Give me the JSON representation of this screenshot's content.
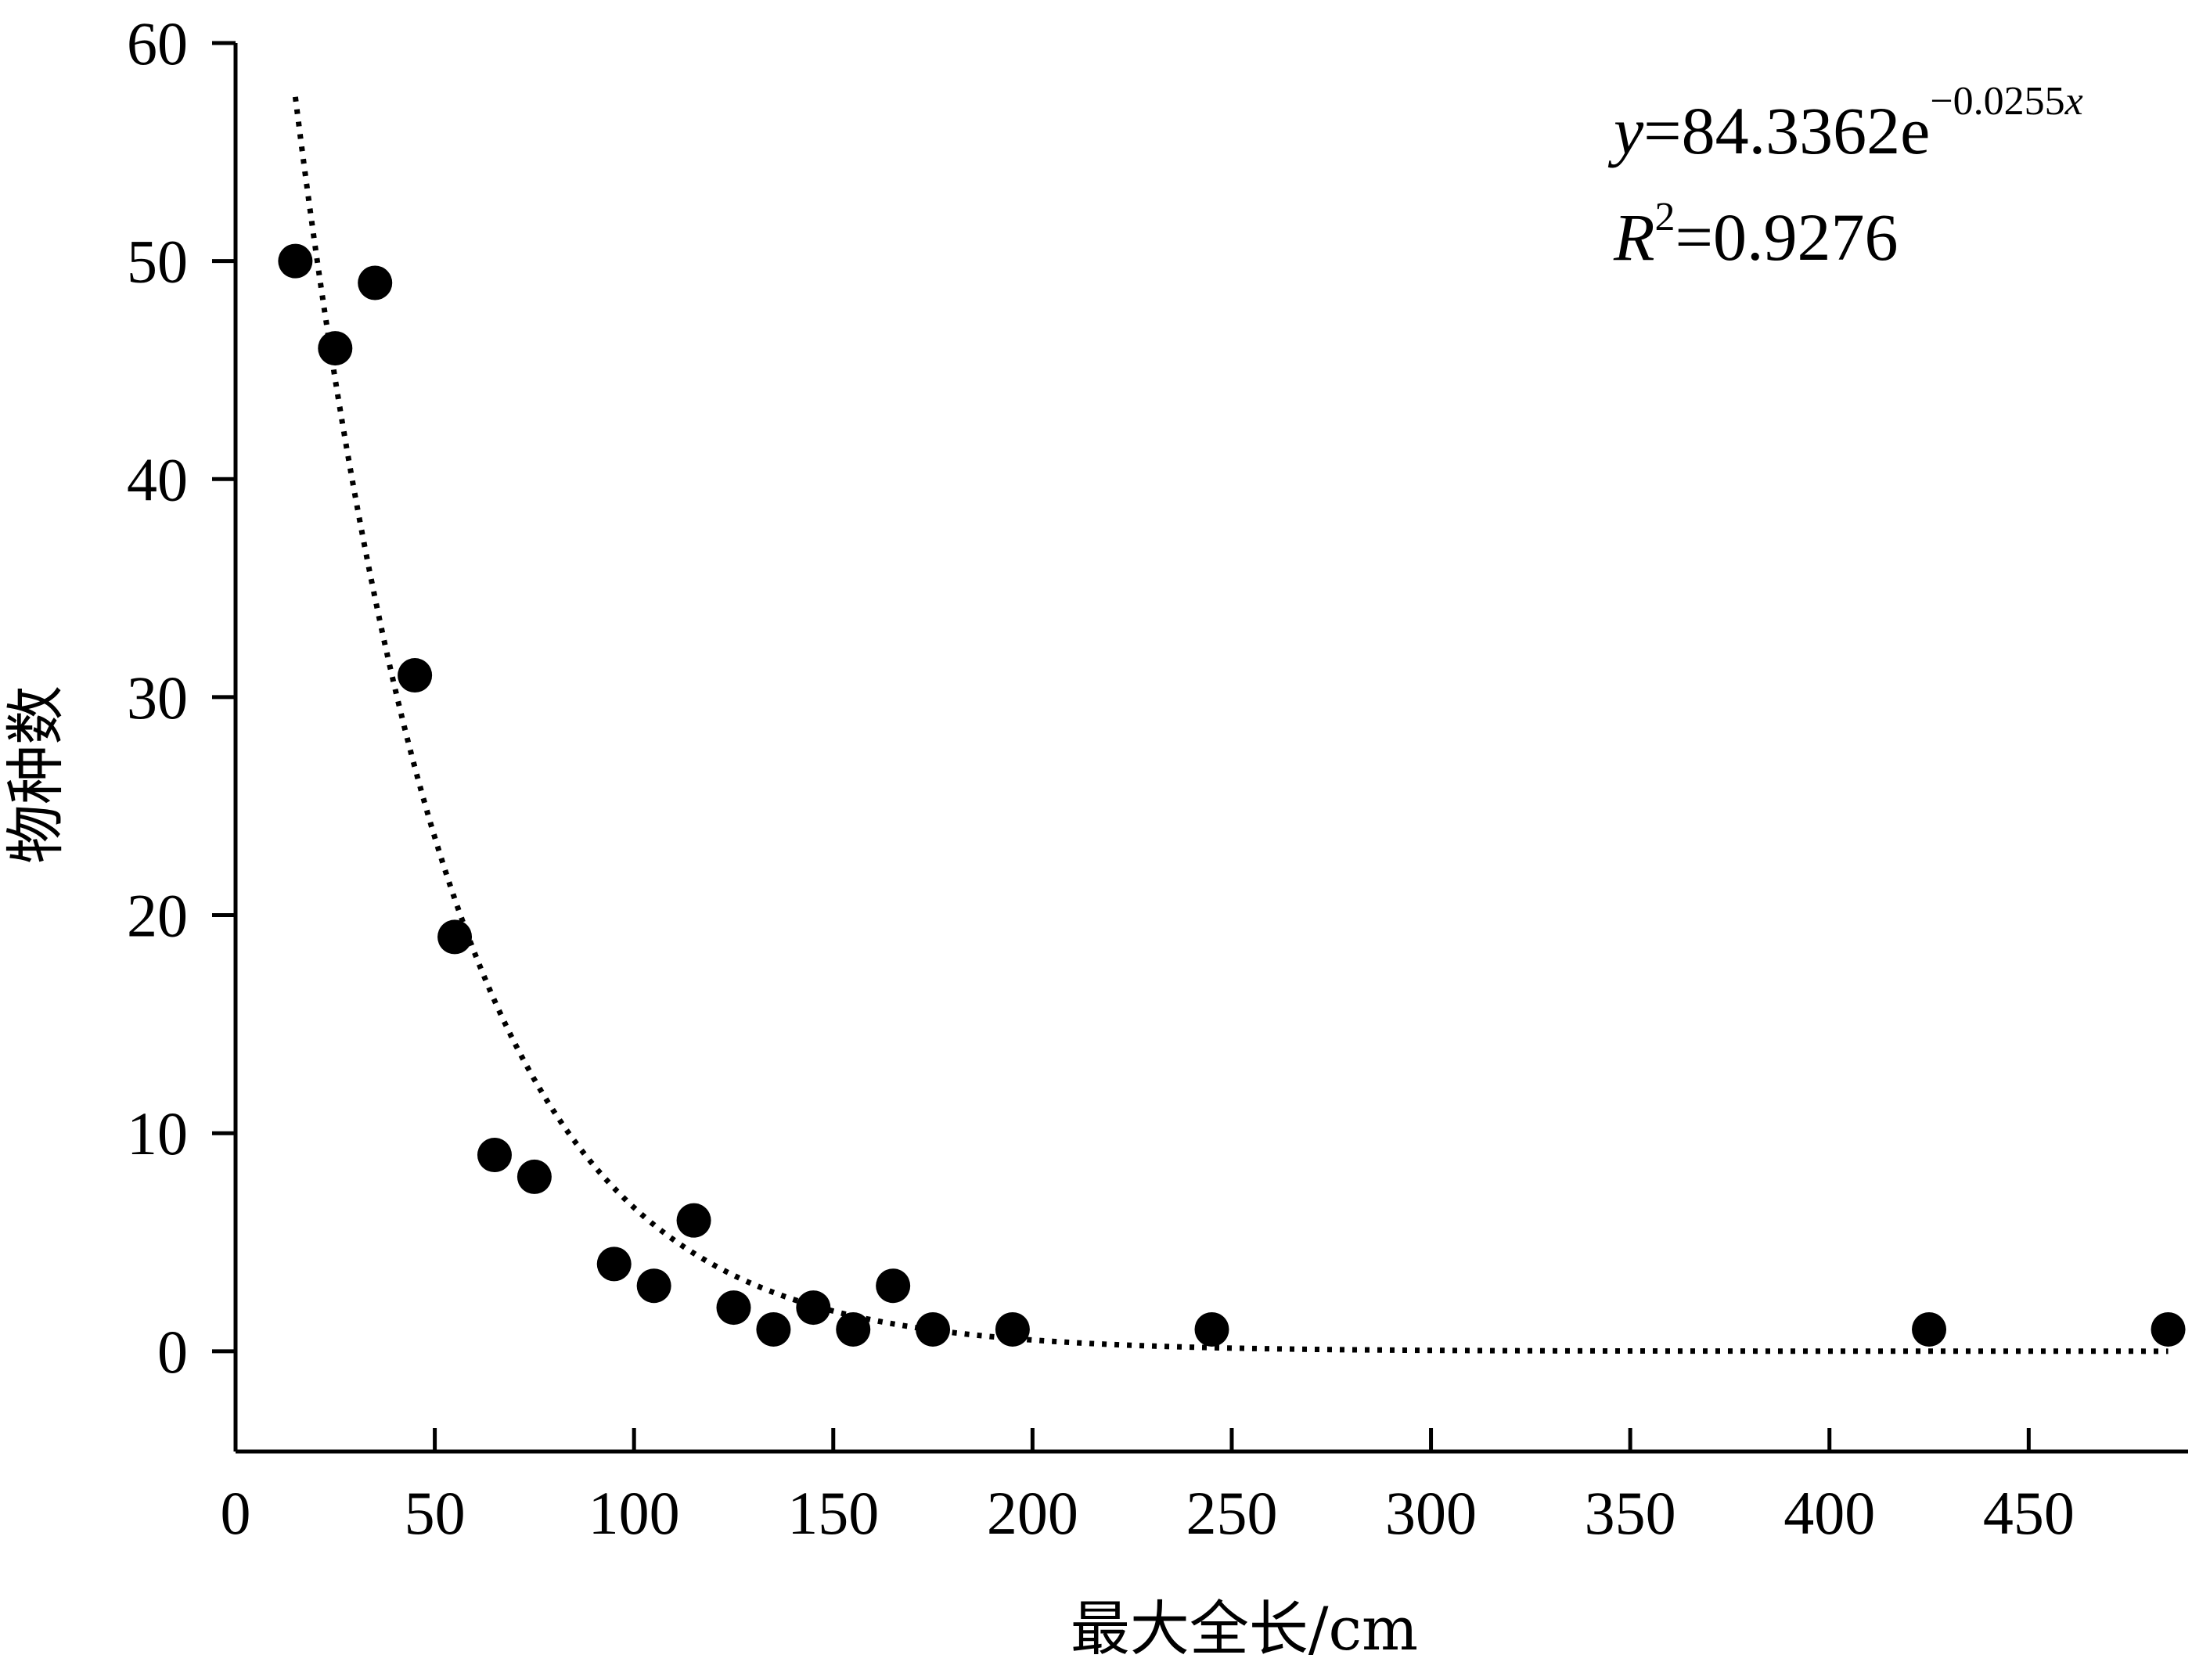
{
  "chart_data": {
    "type": "scatter",
    "title": "",
    "xlabel": "最大全长/cm",
    "ylabel": "物种数",
    "xlim": [
      0,
      490
    ],
    "ylim": [
      -4.6,
      60
    ],
    "x_ticks": [
      0,
      50,
      100,
      150,
      200,
      250,
      300,
      350,
      400,
      450
    ],
    "y_ticks": [
      0,
      10,
      20,
      30,
      40,
      50,
      60
    ],
    "x_tick_labels": [
      "0",
      "50",
      "100",
      "150",
      "200",
      "250",
      "300",
      "350",
      "400",
      "450"
    ],
    "y_tick_labels": [
      "0",
      "10",
      "20",
      "30",
      "40",
      "50",
      "60"
    ],
    "legend": "none",
    "grid": false,
    "series": [
      {
        "marker": "filled-circle",
        "color": "#000000",
        "x": [
          15,
          25,
          35,
          45,
          55,
          65,
          75,
          95,
          105,
          115,
          125,
          135,
          145,
          155,
          165,
          175,
          195,
          245,
          425,
          485
        ],
        "y": [
          50,
          46,
          49,
          31,
          19,
          9,
          8,
          4,
          3,
          6,
          2,
          1,
          2,
          1,
          3,
          1,
          1,
          1,
          1,
          1
        ]
      }
    ],
    "trendline": {
      "type": "exponential",
      "a": 84.3362,
      "b": -0.0255,
      "x_range": [
        15,
        485
      ],
      "style": "dotted",
      "color": "#000000"
    },
    "annotations": {
      "equation": {
        "y_symbol": "y",
        "body": "=84.3362e",
        "exponent_value": "−0.0255",
        "exponent_var": "x"
      },
      "r_squared": {
        "symbol": "R",
        "superscript": "2",
        "body": "=0.9276"
      }
    }
  }
}
